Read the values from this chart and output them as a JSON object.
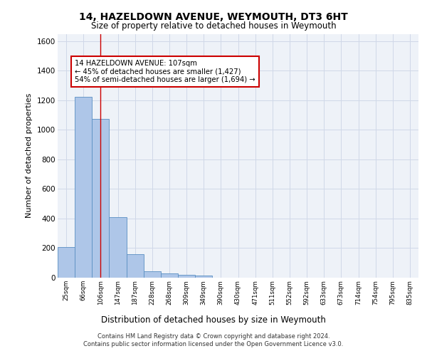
{
  "title": "14, HAZELDOWN AVENUE, WEYMOUTH, DT3 6HT",
  "subtitle": "Size of property relative to detached houses in Weymouth",
  "xlabel": "Distribution of detached houses by size in Weymouth",
  "ylabel": "Number of detached properties",
  "categories": [
    "25sqm",
    "66sqm",
    "106sqm",
    "147sqm",
    "187sqm",
    "228sqm",
    "268sqm",
    "309sqm",
    "349sqm",
    "390sqm",
    "430sqm",
    "471sqm",
    "511sqm",
    "552sqm",
    "592sqm",
    "633sqm",
    "673sqm",
    "714sqm",
    "754sqm",
    "795sqm",
    "835sqm"
  ],
  "values": [
    205,
    1225,
    1075,
    410,
    160,
    45,
    27,
    18,
    14,
    0,
    0,
    0,
    0,
    0,
    0,
    0,
    0,
    0,
    0,
    0,
    0
  ],
  "bar_color": "#aec6e8",
  "bar_edge_color": "#5a8fc2",
  "grid_color": "#d0d8e8",
  "background_color": "#eef2f8",
  "property_line_x": 2,
  "annotation_text": "14 HAZELDOWN AVENUE: 107sqm\n← 45% of detached houses are smaller (1,427)\n54% of semi-detached houses are larger (1,694) →",
  "annotation_box_color": "#ffffff",
  "annotation_box_edge_color": "#cc0000",
  "ylim": [
    0,
    1650
  ],
  "yticks": [
    0,
    200,
    400,
    600,
    800,
    1000,
    1200,
    1400,
    1600
  ],
  "footer_line1": "Contains HM Land Registry data © Crown copyright and database right 2024.",
  "footer_line2": "Contains public sector information licensed under the Open Government Licence v3.0."
}
